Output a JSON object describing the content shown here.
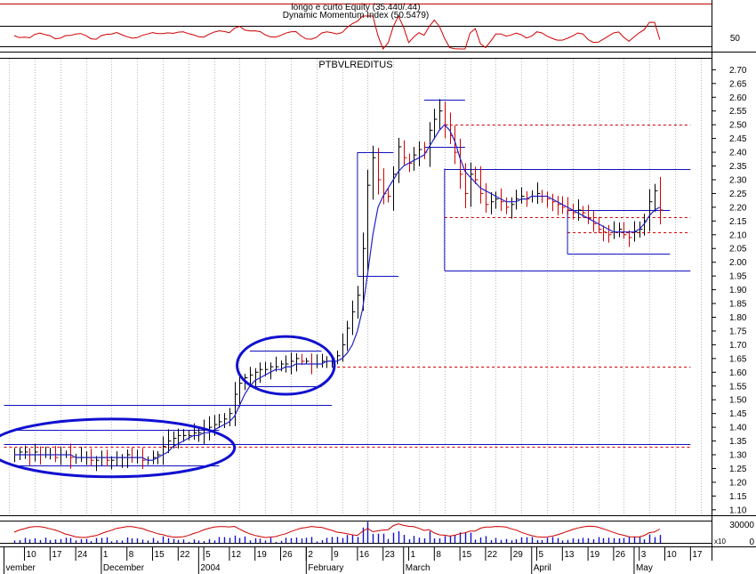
{
  "chart_data": {
    "type": "bar",
    "title": "PTBVLREDITUS",
    "indicator_panel": {
      "label_1": "longo e curto Equity (35.440/.44)",
      "label_2": "Dynamic Momentum Index (50.5479)",
      "tick": "50"
    },
    "volume_panel": {
      "tick_1": "30000",
      "tick_2": "0",
      "unit": "x10"
    },
    "x_labels": [
      {
        "i": 2,
        "text": "10"
      },
      {
        "i": 7,
        "text": "17"
      },
      {
        "i": 12,
        "text": "24"
      },
      {
        "i": 17,
        "text": "1"
      },
      {
        "i": 22,
        "text": "8"
      },
      {
        "i": 27,
        "text": "15"
      },
      {
        "i": 32,
        "text": "22"
      },
      {
        "i": 37,
        "text": "5"
      },
      {
        "i": 42,
        "text": "12"
      },
      {
        "i": 47,
        "text": "19"
      },
      {
        "i": 52,
        "text": "26"
      },
      {
        "i": 57,
        "text": "2"
      },
      {
        "i": 62,
        "text": "9"
      },
      {
        "i": 67,
        "text": "16"
      },
      {
        "i": 72,
        "text": "23"
      },
      {
        "i": 77,
        "text": "1"
      },
      {
        "i": 82,
        "text": "8"
      },
      {
        "i": 87,
        "text": "15"
      },
      {
        "i": 92,
        "text": "22"
      },
      {
        "i": 97,
        "text": "29"
      },
      {
        "i": 102,
        "text": "5"
      },
      {
        "i": 107,
        "text": "13"
      },
      {
        "i": 112,
        "text": "19"
      },
      {
        "i": 117,
        "text": "26"
      },
      {
        "i": 122,
        "text": "3"
      },
      {
        "i": 127,
        "text": "10"
      },
      {
        "i": 132,
        "text": "17"
      }
    ],
    "month_labels": [
      {
        "i": -2,
        "text": "vember"
      },
      {
        "i": 17,
        "text": "December"
      },
      {
        "i": 36,
        "text": "2004"
      },
      {
        "i": 57,
        "text": "February"
      },
      {
        "i": 76,
        "text": "March"
      },
      {
        "i": 101,
        "text": "April"
      },
      {
        "i": 121,
        "text": "May"
      }
    ],
    "y_ticks": [
      1.1,
      1.15,
      1.2,
      1.25,
      1.3,
      1.35,
      1.4,
      1.45,
      1.5,
      1.55,
      1.6,
      1.65,
      1.7,
      1.75,
      1.8,
      1.85,
      1.9,
      1.95,
      2.0,
      2.05,
      2.1,
      2.15,
      2.2,
      2.25,
      2.3,
      2.35,
      2.4,
      2.45,
      2.5,
      2.55,
      2.6,
      2.65,
      2.7
    ],
    "ylim": [
      1.08,
      2.74
    ],
    "close": [
      1.3,
      1.31,
      1.31,
      1.3,
      1.31,
      1.3,
      1.3,
      1.3,
      1.29,
      1.3,
      1.3,
      1.29,
      1.29,
      1.29,
      1.29,
      1.28,
      1.28,
      1.29,
      1.28,
      1.28,
      1.29,
      1.29,
      1.3,
      1.29,
      1.29,
      1.28,
      1.28,
      1.29,
      1.3,
      1.33,
      1.35,
      1.36,
      1.37,
      1.37,
      1.37,
      1.38,
      1.38,
      1.39,
      1.4,
      1.41,
      1.42,
      1.43,
      1.45,
      1.52,
      1.56,
      1.58,
      1.59,
      1.6,
      1.61,
      1.61,
      1.62,
      1.62,
      1.63,
      1.63,
      1.64,
      1.65,
      1.64,
      1.64,
      1.63,
      1.63,
      1.64,
      1.64,
      1.65,
      1.66,
      1.7,
      1.76,
      1.82,
      1.88,
      2.05,
      2.28,
      2.38,
      2.3,
      2.25,
      2.24,
      2.32,
      2.42,
      2.38,
      2.36,
      2.39,
      2.41,
      2.4,
      2.48,
      2.52,
      2.55,
      2.5,
      2.46,
      2.4,
      2.32,
      2.25,
      2.32,
      2.3,
      2.25,
      2.21,
      2.22,
      2.23,
      2.22,
      2.2,
      2.21,
      2.23,
      2.24,
      2.23,
      2.24,
      2.25,
      2.24,
      2.23,
      2.22,
      2.21,
      2.2,
      2.19,
      2.18,
      2.19,
      2.18,
      2.16,
      2.14,
      2.12,
      2.11,
      2.1,
      2.11,
      2.12,
      2.1,
      2.09,
      2.11,
      2.12,
      2.15,
      2.22,
      2.26,
      2.19
    ],
    "moving_average": [
      1.3,
      1.3,
      1.3,
      1.3,
      1.3,
      1.3,
      1.3,
      1.3,
      1.3,
      1.3,
      1.3,
      1.3,
      1.29,
      1.29,
      1.29,
      1.29,
      1.29,
      1.29,
      1.29,
      1.29,
      1.29,
      1.29,
      1.29,
      1.29,
      1.29,
      1.29,
      1.28,
      1.28,
      1.29,
      1.3,
      1.31,
      1.33,
      1.34,
      1.35,
      1.36,
      1.37,
      1.37,
      1.38,
      1.38,
      1.39,
      1.4,
      1.41,
      1.42,
      1.44,
      1.48,
      1.52,
      1.55,
      1.57,
      1.58,
      1.59,
      1.6,
      1.61,
      1.61,
      1.62,
      1.62,
      1.63,
      1.63,
      1.63,
      1.63,
      1.63,
      1.63,
      1.64,
      1.64,
      1.64,
      1.65,
      1.67,
      1.7,
      1.75,
      1.83,
      1.96,
      2.1,
      2.2,
      2.24,
      2.27,
      2.3,
      2.33,
      2.35,
      2.36,
      2.37,
      2.38,
      2.39,
      2.42,
      2.45,
      2.48,
      2.5,
      2.48,
      2.44,
      2.38,
      2.33,
      2.31,
      2.29,
      2.27,
      2.26,
      2.25,
      2.24,
      2.23,
      2.22,
      2.22,
      2.22,
      2.23,
      2.23,
      2.24,
      2.24,
      2.24,
      2.24,
      2.23,
      2.22,
      2.21,
      2.2,
      2.19,
      2.18,
      2.17,
      2.16,
      2.15,
      2.14,
      2.13,
      2.12,
      2.11,
      2.11,
      2.11,
      2.11,
      2.11,
      2.12,
      2.14,
      2.17,
      2.19,
      2.2
    ],
    "horizontal_lines": [
      {
        "y": 1.48,
        "i1": -2,
        "i2": 62,
        "style": "solid"
      },
      {
        "y": 1.39,
        "i1": 0,
        "i2": 40,
        "style": "solid"
      },
      {
        "y": 1.26,
        "i1": 0,
        "i2": 40,
        "style": "solid"
      },
      {
        "y": 1.34,
        "i1": -2,
        "i2": 132,
        "style": "solid"
      },
      {
        "y": 1.33,
        "i1": -2,
        "i2": 132,
        "style": "dashed"
      },
      {
        "y": 1.68,
        "i1": 46,
        "i2": 60,
        "style": "solid"
      },
      {
        "y": 1.55,
        "i1": 46,
        "i2": 60,
        "style": "solid"
      },
      {
        "y": 1.62,
        "i1": 62,
        "i2": 132,
        "style": "dashed"
      },
      {
        "y": 2.4,
        "i1": 67,
        "i2": 74,
        "style": "solid"
      },
      {
        "y": 1.95,
        "i1": 67,
        "i2": 75,
        "style": "solid"
      },
      {
        "y": 2.59,
        "i1": 80,
        "i2": 88,
        "style": "solid"
      },
      {
        "y": 2.42,
        "i1": 80,
        "i2": 88,
        "style": "solid"
      },
      {
        "y": 2.5,
        "i1": 84,
        "i2": 132,
        "style": "dashed"
      },
      {
        "y": 2.34,
        "i1": 84,
        "i2": 132,
        "style": "solid"
      },
      {
        "y": 1.97,
        "i1": 84,
        "i2": 132,
        "style": "solid"
      },
      {
        "y": 2.165,
        "i1": 84,
        "i2": 132,
        "style": "dashed"
      },
      {
        "y": 2.19,
        "i1": 108,
        "i2": 128,
        "style": "solid"
      },
      {
        "y": 2.03,
        "i1": 108,
        "i2": 128,
        "style": "solid"
      },
      {
        "y": 2.11,
        "i1": 108,
        "i2": 132,
        "style": "dashed"
      }
    ],
    "ellipses": [
      {
        "ci": 19,
        "cy": 1.325,
        "ri": 24,
        "ry": 0.105
      },
      {
        "ci": 53,
        "cy": 1.625,
        "ri": 9.5,
        "ry": 0.105
      }
    ],
    "grid": true
  }
}
